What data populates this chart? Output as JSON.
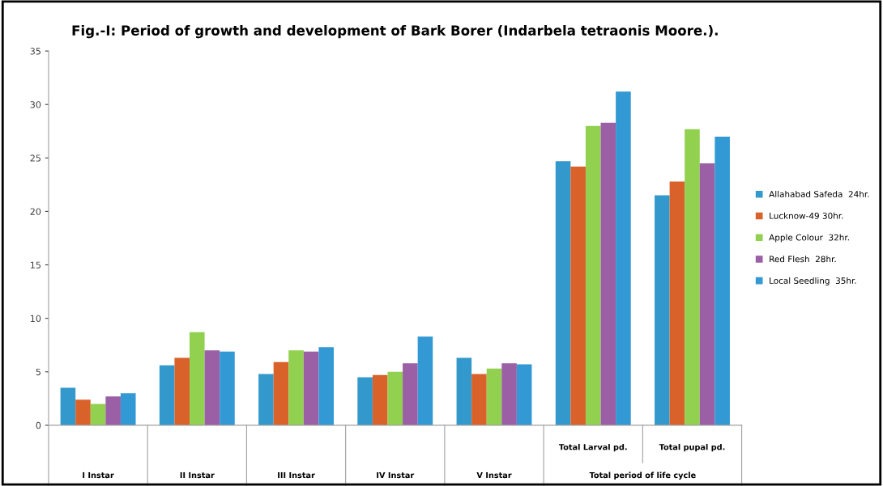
{
  "chart_data": {
    "type": "bar",
    "title": "Fig.-I: Period of growth and development of Bark Borer (Indarbela tetraonis Moore.).",
    "categories": [
      "I Instar",
      "II Instar",
      "III Instar",
      "IV Instar",
      "V Instar",
      "Total Larval pd.",
      "Total pupal pd."
    ],
    "series": [
      {
        "name": "Allahabad Safeda  24hr.",
        "color": "#3399cc",
        "values": [
          3.5,
          5.6,
          4.8,
          4.5,
          6.3,
          24.7,
          21.5
        ]
      },
      {
        "name": "Lucknow-49 30hr.",
        "color": "#d9622b",
        "values": [
          2.4,
          6.3,
          5.9,
          4.7,
          4.8,
          24.2,
          22.8
        ]
      },
      {
        "name": "Apple Colour  32hr.",
        "color": "#92d050",
        "values": [
          2.0,
          8.7,
          7.0,
          5.0,
          5.3,
          28.0,
          27.7
        ]
      },
      {
        "name": "Red Flesh  28hr.",
        "color": "#9b5fa5",
        "values": [
          2.7,
          7.0,
          6.9,
          5.8,
          5.8,
          28.3,
          24.5
        ]
      },
      {
        "name": "Local Seedling  35hr.",
        "color": "#3399d4",
        "values": [
          3.0,
          6.9,
          7.3,
          8.3,
          5.7,
          31.2,
          27.0
        ]
      }
    ],
    "annotations": [
      "Total period of life cycle"
    ],
    "ylim": [
      0,
      35
    ],
    "yticks": [
      0,
      5,
      10,
      15,
      20,
      25,
      30,
      35
    ],
    "grid": false,
    "legend": "right"
  }
}
